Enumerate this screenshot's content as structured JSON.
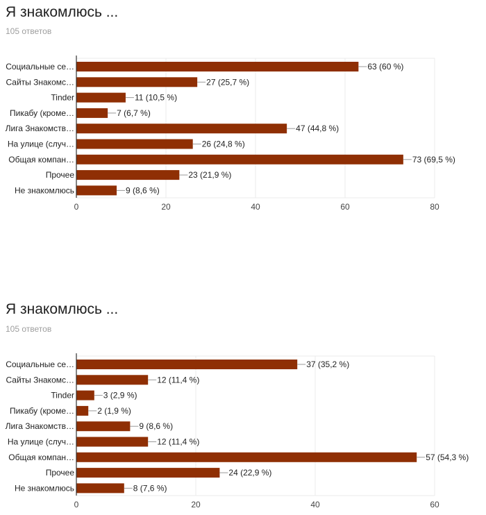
{
  "chart_data": [
    {
      "type": "bar",
      "title": "Я знакомлюсь ...",
      "subtitle": "105 ответов",
      "categories": [
        "Социальные се…",
        "Сайты Знакомс…",
        "Tinder",
        "Пикабу (кроме…",
        "Лига Знакомств…",
        "На улице (случ…",
        "Общая компан…",
        "Прочее",
        "Не знакомлюсь"
      ],
      "values": [
        63,
        27,
        11,
        7,
        47,
        26,
        73,
        23,
        9
      ],
      "labels": [
        "63 (60 %)",
        "27 (25,7 %)",
        "11 (10,5 %)",
        "7 (6,7 %)",
        "47 (44,8 %)",
        "26 (24,8 %)",
        "73 (69,5 %)",
        "23 (21,9 %)",
        "9 (8,6 %)"
      ],
      "xlim": [
        0,
        80
      ],
      "xticks": [
        "0",
        "20",
        "40",
        "60",
        "80"
      ],
      "color": "#8f2f04"
    },
    {
      "type": "bar",
      "title": "Я знакомлюсь ...",
      "subtitle": "105 ответов",
      "categories": [
        "Социальные се…",
        "Сайты Знакомс…",
        "Tinder",
        "Пикабу (кроме…",
        "Лига Знакомств…",
        "На улице (случ…",
        "Общая компан…",
        "Прочее",
        "Не знакомлюсь"
      ],
      "values": [
        37,
        12,
        3,
        2,
        9,
        12,
        57,
        24,
        8
      ],
      "labels": [
        "37 (35,2 %)",
        "12 (11,4 %)",
        "3 (2,9 %)",
        "2 (1,9 %)",
        "9 (8,6 %)",
        "12 (11,4 %)",
        "57 (54,3 %)",
        "24 (22,9 %)",
        "8 (7,6 %)"
      ],
      "xlim": [
        0,
        60
      ],
      "xticks": [
        "0",
        "20",
        "40",
        "60"
      ],
      "color": "#8f2f04"
    }
  ]
}
